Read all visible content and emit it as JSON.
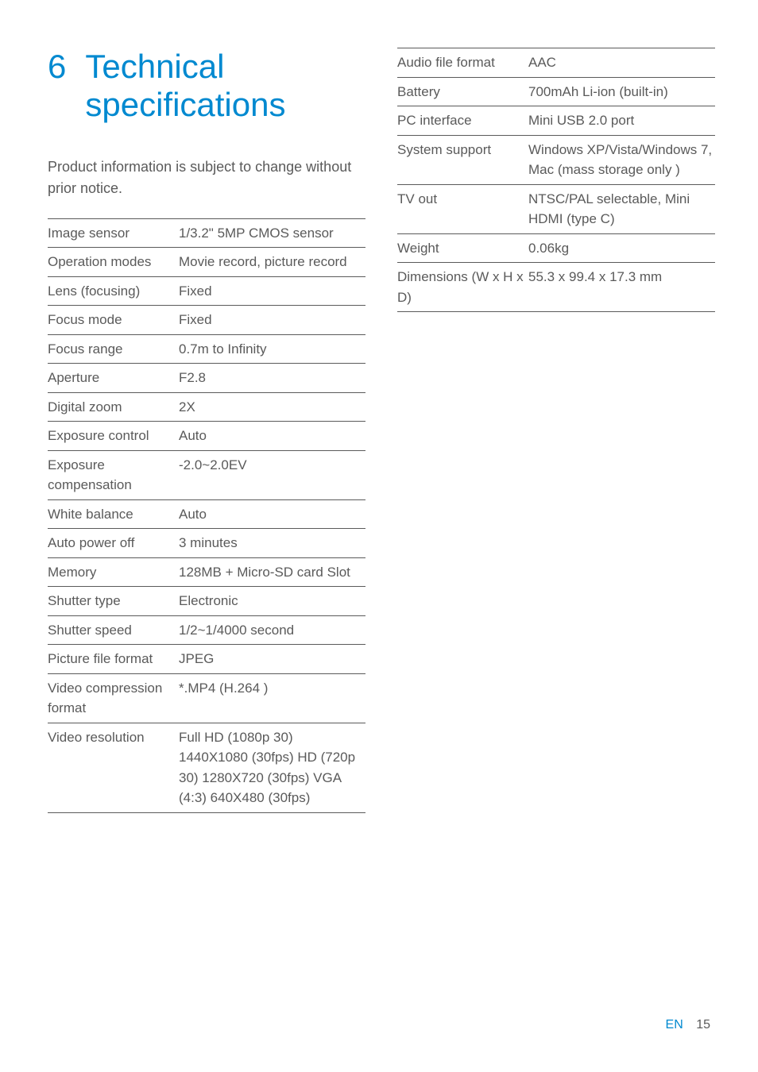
{
  "heading": {
    "number": "6",
    "title": "Technical specifications"
  },
  "intro": "Product information is subject to change without prior notice.",
  "leftTable": {
    "rows": [
      {
        "label": "Image sensor",
        "value": "1/3.2\" 5MP CMOS sensor"
      },
      {
        "label": "Operation modes",
        "value": "Movie record, picture record"
      },
      {
        "label": "Lens (focusing)",
        "value": "Fixed"
      },
      {
        "label": "Focus mode",
        "value": "Fixed"
      },
      {
        "label": "Focus range",
        "value": "0.7m to Infinity"
      },
      {
        "label": "Aperture",
        "value": "F2.8"
      },
      {
        "label": "Digital zoom",
        "value": "2X"
      },
      {
        "label": "Exposure control",
        "value": "Auto"
      },
      {
        "label": "Exposure compensation",
        "value": "-2.0~2.0EV"
      },
      {
        "label": "White balance",
        "value": "Auto"
      },
      {
        "label": "Auto power off",
        "value": "3 minutes"
      },
      {
        "label": "Memory",
        "value": "128MB + Micro-SD card Slot"
      },
      {
        "label": "Shutter type",
        "value": "Electronic"
      },
      {
        "label": "Shutter speed",
        "value": "1/2~1/4000 second"
      },
      {
        "label": "Picture file format",
        "value": "JPEG"
      },
      {
        "label": "Video compression format",
        "value": "*.MP4 (H.264 )"
      },
      {
        "label": "Video resolution",
        "value": "Full HD (1080p 30) 1440X1080 (30fps) HD (720p 30) 1280X720 (30fps) VGA (4:3) 640X480 (30fps)"
      }
    ]
  },
  "rightTable": {
    "rows": [
      {
        "label": "Audio file format",
        "value": "AAC"
      },
      {
        "label": "Battery",
        "value": "700mAh Li-ion (built-in)"
      },
      {
        "label": "PC interface",
        "value": "Mini USB 2.0 port"
      },
      {
        "label": "System support",
        "value": "Windows XP/Vista/Windows 7, Mac (mass storage only )"
      },
      {
        "label": "TV out",
        "value": "NTSC/PAL selectable, Mini HDMI (type C)"
      },
      {
        "label": "Weight",
        "value": "0.06kg"
      },
      {
        "label": "Dimensions (W x H x D)",
        "value": "55.3 x 99.4 x 17.3 mm"
      }
    ]
  },
  "footer": {
    "lang": "EN",
    "page": "15"
  },
  "colors": {
    "accent": "#0089d0",
    "text": "#5a5a5a",
    "border": "#5a5a5a",
    "background": "#ffffff"
  },
  "typography": {
    "heading_fontsize": 42,
    "body_fontsize": 17,
    "intro_fontsize": 18,
    "footer_fontsize": 16
  }
}
